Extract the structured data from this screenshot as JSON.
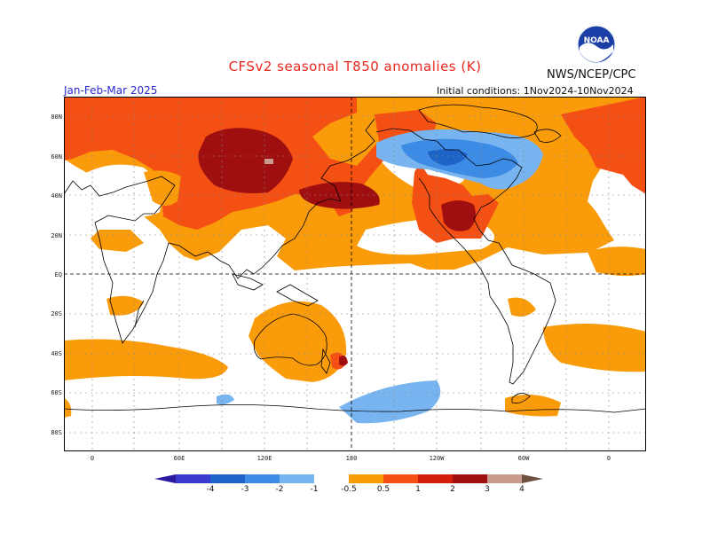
{
  "header": {
    "title": "CFSv2 seasonal T850 anomalies (K)",
    "org": "NWS/NCEP/CPC",
    "season": "Jan-Feb-Mar 2025",
    "initial_conditions": "Initial conditions: 1Nov2024-10Nov2024",
    "logo_text": "NOAA"
  },
  "map": {
    "lat_labels": [
      "80N",
      "60N",
      "40N",
      "20N",
      "EQ",
      "20S",
      "40S",
      "60S",
      "80S"
    ],
    "lon_labels": [
      "0",
      "60E",
      "120E",
      "180",
      "120W",
      "60W",
      "0"
    ]
  },
  "colorbar": {
    "labels": [
      "-4",
      "-3",
      "-2",
      "-1",
      "-0.5",
      "0.5",
      "1",
      "2",
      "3",
      "4"
    ],
    "colors": [
      "#2a1aa0",
      "#3a3acd",
      "#1e64c8",
      "#3c8ce6",
      "#78b4f0",
      "#ffffff",
      "#fa9b0a",
      "#f55014",
      "#d21e0a",
      "#a00f0f",
      "#c89b8c",
      "#6e5041"
    ]
  }
}
